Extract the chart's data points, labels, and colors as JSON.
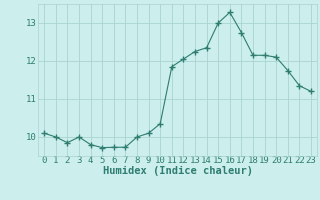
{
  "x": [
    0,
    1,
    2,
    3,
    4,
    5,
    6,
    7,
    8,
    9,
    10,
    11,
    12,
    13,
    14,
    15,
    16,
    17,
    18,
    19,
    20,
    21,
    22,
    23
  ],
  "y": [
    10.1,
    10.0,
    9.85,
    10.0,
    9.8,
    9.72,
    9.73,
    9.73,
    10.0,
    10.1,
    10.35,
    11.85,
    12.05,
    12.25,
    12.35,
    13.0,
    13.28,
    12.75,
    12.15,
    12.15,
    12.1,
    11.75,
    11.35,
    11.2
  ],
  "line_color": "#2e7d6e",
  "marker": "+",
  "marker_size": 4,
  "bg_color": "#cceeed",
  "grid_color": "#aad4d0",
  "xlabel": "Humidex (Indice chaleur)",
  "xlim": [
    -0.5,
    23.5
  ],
  "ylim": [
    9.5,
    13.5
  ],
  "yticks": [
    10,
    11,
    12,
    13
  ],
  "xticks": [
    0,
    1,
    2,
    3,
    4,
    5,
    6,
    7,
    8,
    9,
    10,
    11,
    12,
    13,
    14,
    15,
    16,
    17,
    18,
    19,
    20,
    21,
    22,
    23
  ],
  "xlabel_fontsize": 7.5,
  "tick_fontsize": 6.5
}
